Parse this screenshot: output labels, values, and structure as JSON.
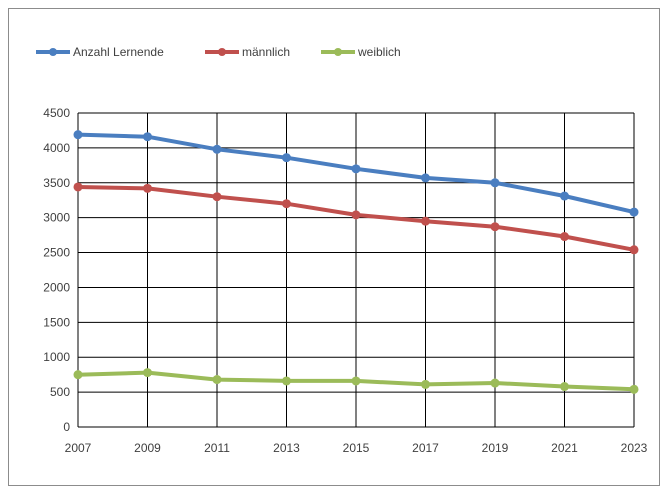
{
  "chart_data": {
    "type": "line",
    "title": "",
    "xlabel": "",
    "ylabel": "",
    "categories": [
      "2007",
      "2009",
      "2011",
      "2013",
      "2015",
      "2017",
      "2019",
      "2021",
      "2023"
    ],
    "ylim": [
      0,
      4500
    ],
    "yticks": [
      0,
      500,
      1000,
      1500,
      2000,
      2500,
      3000,
      3500,
      4000,
      4500
    ],
    "grid": true,
    "legend_position": "top-left",
    "series": [
      {
        "name": "Anzahl Lernende",
        "color": "#4a7ec0",
        "values": [
          4190,
          4160,
          3980,
          3860,
          3700,
          3570,
          3500,
          3310,
          3080
        ]
      },
      {
        "name": "männlich",
        "color": "#c0504d",
        "values": [
          3440,
          3420,
          3300,
          3200,
          3040,
          2950,
          2870,
          2730,
          2540
        ]
      },
      {
        "name": "weiblich",
        "color": "#9bbb59",
        "values": [
          750,
          780,
          680,
          660,
          660,
          610,
          630,
          580,
          540
        ]
      }
    ]
  }
}
